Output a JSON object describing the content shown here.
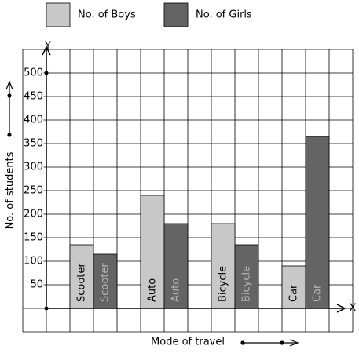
{
  "chart_data": {
    "type": "bar",
    "x_label": "Mode of travel",
    "y_label": "No. of students",
    "x_axis_symbol": "X",
    "y_axis_symbol": "Y",
    "categories": [
      "Scooter",
      "Auto",
      "Bicycle",
      "Car"
    ],
    "series": [
      {
        "name": "No. of Boys",
        "color": "#c8c8c8",
        "values": [
          135,
          240,
          180,
          90
        ]
      },
      {
        "name": "No. of Girls",
        "color": "#646464",
        "values": [
          115,
          180,
          135,
          365
        ]
      }
    ],
    "ylim": [
      -50,
      550
    ],
    "yticks": [
      50,
      100,
      150,
      200,
      250,
      300,
      350,
      400,
      450,
      500
    ],
    "grid": true
  }
}
